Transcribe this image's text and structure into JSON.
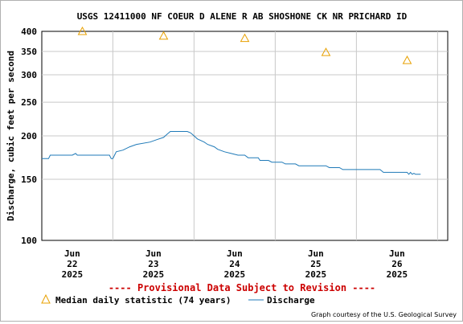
{
  "chart_data": {
    "type": "line",
    "title": "USGS 12411000 NF COEUR D ALENE R AB SHOSHONE CK NR PRICHARD ID",
    "ylabel": "Discharge, cubic feet per second",
    "xlabel": "",
    "y_scale": "log",
    "ylim": [
      100,
      400
    ],
    "y_ticks": [
      "100",
      "150",
      "200",
      "250",
      "300",
      "350",
      "400"
    ],
    "x_unit": "hours since 2025-06-21 15:00",
    "xlim": [
      0,
      120
    ],
    "x_ticks": [
      {
        "x": 9,
        "month": "Jun",
        "day": "22",
        "year": "2025"
      },
      {
        "x": 33,
        "month": "Jun",
        "day": "23",
        "year": "2025"
      },
      {
        "x": 57,
        "month": "Jun",
        "day": "24",
        "year": "2025"
      },
      {
        "x": 81,
        "month": "Jun",
        "day": "25",
        "year": "2025"
      },
      {
        "x": 105,
        "month": "Jun",
        "day": "26",
        "year": "2025"
      }
    ],
    "grid": true,
    "series": [
      {
        "name": "Median daily statistic (74 years)",
        "kind": "scatter",
        "marker": "triangle",
        "color": "#e8a000",
        "points": [
          [
            12,
            400
          ],
          [
            36,
            388
          ],
          [
            60,
            382
          ],
          [
            84,
            348
          ],
          [
            108,
            330
          ]
        ]
      },
      {
        "name": "Discharge",
        "kind": "line",
        "color": "#1f7ab8",
        "points": [
          [
            0,
            172
          ],
          [
            2,
            172
          ],
          [
            2.5,
            176
          ],
          [
            9,
            176
          ],
          [
            10,
            178
          ],
          [
            10.5,
            176
          ],
          [
            20,
            176
          ],
          [
            20.5,
            172
          ],
          [
            21,
            172
          ],
          [
            21.5,
            176
          ],
          [
            22,
            180
          ],
          [
            24,
            182
          ],
          [
            26,
            186
          ],
          [
            28,
            189
          ],
          [
            32,
            192
          ],
          [
            34,
            195
          ],
          [
            36,
            198
          ],
          [
            37,
            202
          ],
          [
            38,
            206
          ],
          [
            43,
            206
          ],
          [
            44,
            204
          ],
          [
            45,
            200
          ],
          [
            46,
            196
          ],
          [
            48,
            192
          ],
          [
            49,
            189
          ],
          [
            51,
            186
          ],
          [
            52,
            183
          ],
          [
            54,
            180
          ],
          [
            56,
            178
          ],
          [
            58,
            176
          ],
          [
            60,
            176
          ],
          [
            61,
            173
          ],
          [
            64,
            173
          ],
          [
            64.5,
            170
          ],
          [
            67,
            170
          ],
          [
            68,
            168
          ],
          [
            71,
            168
          ],
          [
            72,
            166
          ],
          [
            75,
            166
          ],
          [
            76,
            164
          ],
          [
            84,
            164
          ],
          [
            85,
            162
          ],
          [
            88,
            162
          ],
          [
            89,
            160
          ],
          [
            100,
            160
          ],
          [
            101,
            157
          ],
          [
            108,
            157
          ],
          [
            108.5,
            155
          ],
          [
            109,
            157
          ],
          [
            109.5,
            155
          ],
          [
            110,
            156
          ],
          [
            110.5,
            155
          ],
          [
            112,
            155
          ]
        ]
      }
    ],
    "legend": {
      "placement": "bottom",
      "entries": [
        {
          "label": "Median daily statistic (74 years)",
          "marker": "triangle",
          "color": "#e8a000"
        },
        {
          "label": "Discharge",
          "marker": "line",
          "color": "#1f7ab8"
        }
      ]
    },
    "annotations": {
      "provisional": "---- Provisional Data Subject to Revision ----",
      "courtesy": "Graph courtesy of the U.S. Geological Survey"
    }
  }
}
